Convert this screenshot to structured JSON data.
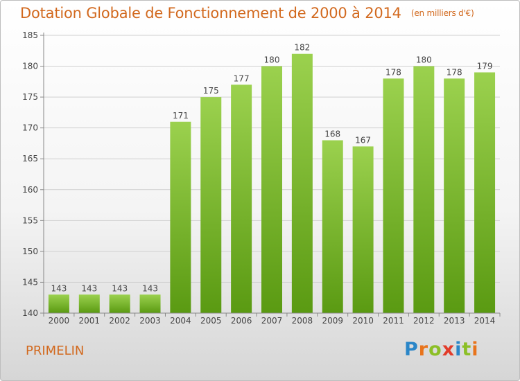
{
  "header": {
    "title": "Dotation Globale de Fonctionnement de 2000 à 2014",
    "unit": "(en milliers d'€)"
  },
  "footer": {
    "commune": "PRIMELIN",
    "logo_text": "Proxiti",
    "logo_letters": [
      {
        "ch": "P",
        "color": "#2a86c8"
      },
      {
        "ch": "r",
        "color": "#e8741c"
      },
      {
        "ch": "o",
        "color": "#8cbf26"
      },
      {
        "ch": "x",
        "color": "#e23c2a"
      },
      {
        "ch": "i",
        "color": "#2a86c8"
      },
      {
        "ch": "t",
        "color": "#8cbf26"
      },
      {
        "ch": "i",
        "color": "#e8741c"
      }
    ]
  },
  "colors": {
    "bar_top": "#9bd14e",
    "bar_bottom": "#5a9a12",
    "title": "#d2691e",
    "axis": "#888888",
    "grid": "#cfcfcf"
  },
  "chart_data": {
    "type": "bar",
    "categories": [
      "2000",
      "2001",
      "2002",
      "2003",
      "2004",
      "2005",
      "2006",
      "2007",
      "2008",
      "2009",
      "2010",
      "2011",
      "2012",
      "2013",
      "2014"
    ],
    "values": [
      143,
      143,
      143,
      143,
      171,
      175,
      177,
      180,
      182,
      168,
      167,
      178,
      180,
      178,
      179
    ],
    "title": "Dotation Globale de Fonctionnement de 2000 à 2014",
    "xlabel": "",
    "ylabel": "",
    "ylim": [
      140,
      185
    ],
    "yticks": [
      140,
      145,
      150,
      155,
      160,
      165,
      170,
      175,
      180,
      185
    ],
    "grid": true,
    "legend": "none"
  }
}
